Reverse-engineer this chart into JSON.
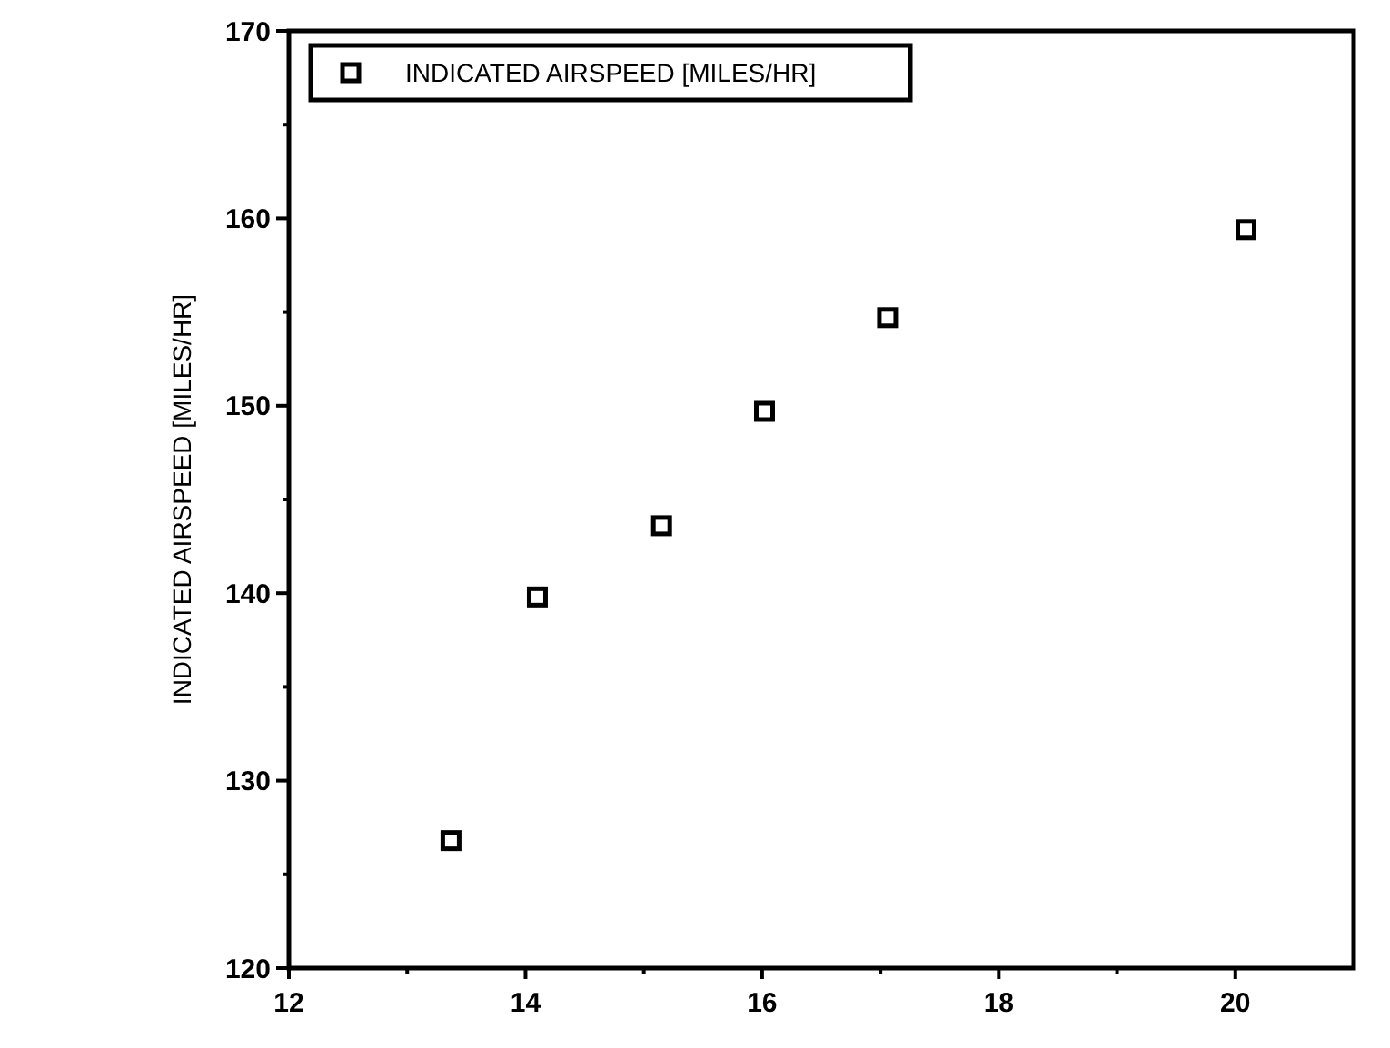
{
  "chart_data": {
    "type": "scatter",
    "ylabel": "INDICATED AIRSPEED [MILES/HR]",
    "x": [
      13.37,
      14.1,
      15.15,
      16.02,
      17.06,
      20.09
    ],
    "series": [
      {
        "name": "INDICATED AIRSPEED [MILES/HR]",
        "color": "#000000",
        "values": [
          126.8,
          139.8,
          143.6,
          149.7,
          154.7,
          159.4
        ]
      }
    ],
    "xlim": [
      12,
      21
    ],
    "xticks": [
      12,
      {
        "value": 13,
        "label": null
      },
      14,
      {
        "value": 15,
        "label": null
      },
      16,
      {
        "value": 17,
        "label": null
      },
      18,
      {
        "value": 19,
        "label": null
      },
      20
    ],
    "ylim": [
      120,
      170
    ],
    "yticks": [
      120,
      {
        "value": 125,
        "label": null
      },
      130,
      {
        "value": 135,
        "label": null
      },
      140,
      {
        "value": 145,
        "label": null
      },
      150,
      {
        "value": 155,
        "label": null
      },
      160,
      {
        "value": 165,
        "label": null
      },
      170
    ],
    "marker": "square",
    "legend": "top left",
    "grid": false
  }
}
